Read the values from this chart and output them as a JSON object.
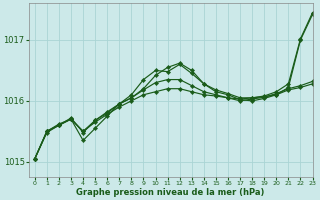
{
  "xlabel": "Graphe pression niveau de la mer (hPa)",
  "xlim": [
    -0.5,
    23
  ],
  "ylim": [
    1014.75,
    1017.6
  ],
  "yticks": [
    1015,
    1016,
    1017
  ],
  "xticks": [
    0,
    1,
    2,
    3,
    4,
    5,
    6,
    7,
    8,
    9,
    10,
    11,
    12,
    13,
    14,
    15,
    16,
    17,
    18,
    19,
    20,
    21,
    22,
    23
  ],
  "bg_color": "#cce9e9",
  "grid_color": "#aad4d4",
  "line_color": "#1a5c1a",
  "line1_x": [
    0,
    1,
    2,
    3,
    4,
    5,
    6,
    7,
    8,
    9,
    10,
    11,
    12,
    13,
    14,
    15,
    16,
    17,
    18,
    19,
    20,
    21,
    22,
    23
  ],
  "line1_y": [
    1015.05,
    1015.5,
    1015.6,
    1015.7,
    1015.5,
    1015.65,
    1015.78,
    1015.9,
    1016.0,
    1016.1,
    1016.15,
    1016.2,
    1016.2,
    1016.15,
    1016.1,
    1016.08,
    1016.05,
    1016.03,
    1016.05,
    1016.07,
    1016.1,
    1016.18,
    1016.22,
    1016.28
  ],
  "line2_x": [
    0,
    1,
    2,
    3,
    4,
    5,
    6,
    7,
    8,
    9,
    10,
    11,
    12,
    13,
    14,
    15,
    16,
    17,
    18,
    19,
    20,
    21,
    22,
    23
  ],
  "line2_y": [
    1015.05,
    1015.48,
    1015.6,
    1015.72,
    1015.48,
    1015.68,
    1015.82,
    1015.95,
    1016.05,
    1016.18,
    1016.3,
    1016.35,
    1016.35,
    1016.25,
    1016.15,
    1016.1,
    1016.05,
    1016.0,
    1016.03,
    1016.06,
    1016.12,
    1016.2,
    1016.25,
    1016.32
  ],
  "line3_x": [
    0,
    1,
    2,
    3,
    4,
    5,
    6,
    7,
    8,
    9,
    10,
    11,
    12,
    13,
    14,
    15,
    16,
    17,
    18,
    19,
    20,
    21,
    22,
    23
  ],
  "line3_y": [
    1015.05,
    1015.5,
    1015.62,
    1015.7,
    1015.35,
    1015.55,
    1015.75,
    1015.95,
    1016.1,
    1016.35,
    1016.5,
    1016.48,
    1016.6,
    1016.45,
    1016.28,
    1016.15,
    1016.1,
    1016.02,
    1016.0,
    1016.04,
    1016.1,
    1016.22,
    1017.0,
    1017.42
  ],
  "line4_x": [
    0,
    1,
    2,
    3,
    4,
    5,
    6,
    7,
    8,
    9,
    10,
    11,
    12,
    13,
    14,
    15,
    16,
    17,
    18,
    19,
    20,
    21,
    22,
    23
  ],
  "line4_y": [
    1015.05,
    1015.5,
    1015.6,
    1015.7,
    1015.5,
    1015.68,
    1015.8,
    1015.95,
    1016.05,
    1016.2,
    1016.42,
    1016.55,
    1016.62,
    1016.5,
    1016.28,
    1016.18,
    1016.12,
    1016.05,
    1016.05,
    1016.08,
    1016.15,
    1016.28,
    1017.02,
    1017.45
  ]
}
